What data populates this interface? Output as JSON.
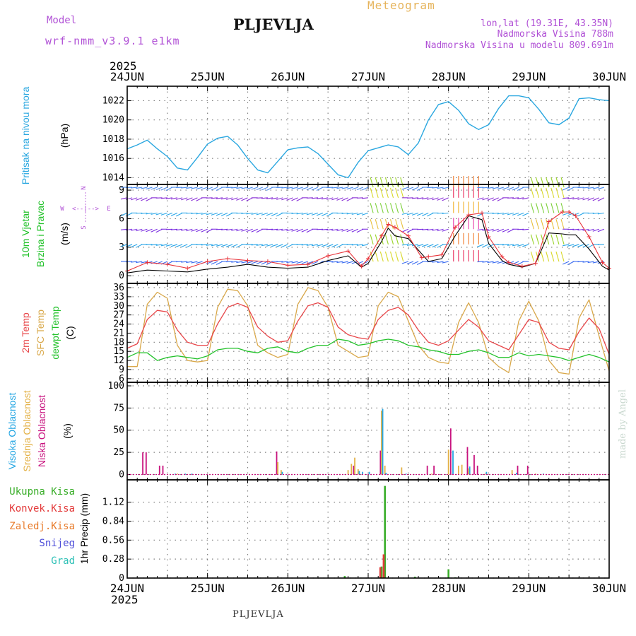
{
  "header": {
    "model_label": "Model",
    "model_name": "wrf-nmm_v3.9.1 e1km",
    "station": "PLJEVLJA",
    "product": "Meteogram",
    "lonlat": "lon,lat (19.31E, 43.35N)",
    "elevation": "Nadmorska Visina 788m",
    "model_elevation": "Nadmorska Visina u modelu 809.691m",
    "credit": "made by Angel",
    "footer_station": "PLJEVLJA"
  },
  "colors": {
    "pressure": "#2aa7e0",
    "wind_speed": "#000000",
    "wind_gust": "#e8333a",
    "temp_2m": "#e8474a",
    "temp_sfc": "#d9a84a",
    "dewpoint": "#22c22a",
    "cloud_high": "#23a6e3",
    "cloud_mid": "#e3b146",
    "cloud_low": "#c8127e",
    "precip_total": "#3aae2a",
    "precip_conv": "#e33a3a",
    "precip_snow_label": "#4b4bd8",
    "precip_grad_label": "#2cc0b6",
    "precip_zaledj_label": "#e87b2a",
    "frame": "#000000",
    "grid": "#808080"
  },
  "chart_data": [
    {
      "id": "pressure",
      "type": "line",
      "ylabel": "Pritisak na nivou mora",
      "unit": "(hPa)",
      "ylim": [
        1013.3,
        1023.5
      ],
      "yticks": [
        "1014",
        "1016",
        "1018",
        "1020",
        "1022"
      ],
      "xlim": [
        0,
        144
      ],
      "x_top_ticks": [
        "24JUN",
        "25JUN",
        "26JUN",
        "27JUN",
        "28JUN",
        "29JUN",
        "30JUN"
      ],
      "x_top_year": "2025",
      "grid": true,
      "series": [
        {
          "key": "pressure",
          "x": [
            0,
            3,
            6,
            9,
            12,
            15,
            18,
            21,
            24,
            27,
            30,
            33,
            36,
            39,
            42,
            45,
            48,
            51,
            54,
            57,
            60,
            63,
            66,
            69,
            72,
            75,
            78,
            81,
            84,
            87,
            90,
            93,
            96,
            99,
            102,
            105,
            108,
            111,
            114,
            117,
            120,
            123,
            126,
            129,
            132,
            135,
            138,
            141,
            144
          ],
          "y": [
            1017.0,
            1017.4,
            1017.9,
            1017.0,
            1016.2,
            1015.0,
            1014.8,
            1016.1,
            1017.5,
            1018.1,
            1018.3,
            1017.4,
            1016.0,
            1014.8,
            1014.5,
            1015.7,
            1016.9,
            1017.1,
            1017.2,
            1016.5,
            1015.4,
            1014.3,
            1014.0,
            1015.6,
            1016.8,
            1017.1,
            1017.4,
            1017.2,
            1016.4,
            1017.6,
            1020.0,
            1021.6,
            1021.9,
            1021.0,
            1019.6,
            1019.0,
            1019.5,
            1021.2,
            1022.5,
            1022.5,
            1022.3,
            1021.1,
            1019.7,
            1019.5,
            1020.2,
            1022.2,
            1022.3,
            1022.1,
            1022.0
          ]
        }
      ]
    },
    {
      "id": "wind",
      "type": "line",
      "ylabel_lines": [
        "10m Vjetar",
        "Brzina i Pravac"
      ],
      "unit": "(m/s)",
      "compass": {
        "n": "N",
        "s": "S",
        "e": "E",
        "w": "W",
        "arrows": "<--|-->"
      },
      "ylim": [
        -0.8,
        9.6
      ],
      "yticks": [
        "0",
        "3",
        "6",
        "9"
      ],
      "xlim": [
        0,
        144
      ],
      "grid": true,
      "series": [
        {
          "key": "wind_speed",
          "x": [
            0,
            6,
            12,
            18,
            24,
            30,
            36,
            42,
            48,
            54,
            60,
            66,
            70,
            72,
            76,
            78,
            80,
            84,
            88,
            90,
            94,
            98,
            102,
            106,
            108,
            112,
            114,
            118,
            122,
            126,
            130,
            132,
            134,
            138,
            142,
            144
          ],
          "y": [
            0.3,
            0.6,
            0.5,
            0.4,
            0.7,
            0.9,
            1.2,
            0.9,
            0.8,
            0.9,
            1.6,
            2.1,
            0.9,
            1.3,
            3.6,
            5.0,
            4.2,
            3.9,
            2.3,
            1.5,
            1.8,
            4.2,
            6.3,
            5.9,
            3.4,
            1.6,
            1.2,
            0.9,
            1.3,
            4.5,
            4.4,
            4.3,
            4.3,
            2.8,
            1.0,
            0.6
          ]
        },
        {
          "key": "wind_gust",
          "x": [
            0,
            6,
            12,
            18,
            24,
            30,
            36,
            42,
            48,
            54,
            60,
            66,
            70,
            72,
            76,
            78,
            80,
            84,
            88,
            90,
            94,
            98,
            102,
            106,
            108,
            112,
            114,
            118,
            122,
            126,
            130,
            132,
            134,
            138,
            142,
            144
          ],
          "y": [
            0.5,
            1.4,
            1.2,
            0.8,
            1.5,
            1.8,
            1.6,
            1.5,
            1.1,
            1.2,
            2.1,
            2.6,
            1.0,
            1.8,
            4.2,
            5.4,
            5.1,
            4.2,
            1.9,
            2.0,
            2.2,
            5.1,
            6.4,
            6.6,
            4.1,
            2.0,
            1.4,
            1.0,
            1.3,
            5.7,
            6.7,
            6.7,
            6.3,
            4.1,
            1.4,
            0.8
          ]
        }
      ]
    },
    {
      "id": "temperature",
      "type": "line",
      "ylabels": [
        "2m Temp",
        "SFC Temp",
        "dewpt Temp"
      ],
      "unit": "(C)",
      "ylim": [
        4.8,
        37.4
      ],
      "yticks": [
        "6",
        "9",
        "12",
        "15",
        "18",
        "21",
        "24",
        "27",
        "30",
        "33",
        "36"
      ],
      "xlim": [
        0,
        144
      ],
      "grid": true,
      "series": [
        {
          "key": "temp_2m",
          "x": [
            0,
            3,
            6,
            9,
            12,
            15,
            18,
            21,
            24,
            27,
            30,
            33,
            36,
            39,
            42,
            45,
            48,
            51,
            54,
            57,
            60,
            63,
            66,
            69,
            72,
            75,
            78,
            81,
            84,
            87,
            90,
            93,
            96,
            99,
            102,
            105,
            108,
            111,
            114,
            117,
            120,
            123,
            126,
            129,
            132,
            135,
            138,
            141,
            144
          ],
          "y": [
            16.0,
            17.5,
            25.5,
            28.5,
            28.0,
            22.0,
            18.0,
            17.0,
            17.0,
            24.0,
            29.5,
            30.8,
            29.5,
            23.0,
            20.0,
            18.0,
            18.5,
            25.0,
            30.0,
            31.0,
            29.5,
            23.0,
            20.5,
            19.5,
            19.0,
            25.5,
            28.5,
            29.5,
            27.0,
            22.0,
            18.0,
            17.0,
            18.5,
            22.0,
            25.5,
            23.0,
            18.5,
            17.0,
            15.5,
            20.5,
            25.5,
            24.5,
            18.0,
            16.0,
            15.5,
            21.5,
            26.0,
            22.5,
            14.0
          ]
        },
        {
          "key": "temp_sfc",
          "x": [
            0,
            3,
            6,
            9,
            12,
            15,
            18,
            21,
            24,
            27,
            30,
            33,
            36,
            39,
            42,
            45,
            48,
            51,
            54,
            57,
            60,
            63,
            66,
            69,
            72,
            75,
            78,
            81,
            84,
            87,
            90,
            93,
            96,
            99,
            102,
            105,
            108,
            111,
            114,
            117,
            120,
            123,
            126,
            129,
            132,
            135,
            138,
            141,
            144
          ],
          "y": [
            10.0,
            10.0,
            30.5,
            34.5,
            32.5,
            17.0,
            12.0,
            11.5,
            12.0,
            29.5,
            35.5,
            35.0,
            30.0,
            17.0,
            14.5,
            13.0,
            14.0,
            30.5,
            36.0,
            35.0,
            29.5,
            17.0,
            15.0,
            13.0,
            13.5,
            30.0,
            34.5,
            33.0,
            25.0,
            17.0,
            13.0,
            11.5,
            11.0,
            24.5,
            31.0,
            24.5,
            13.0,
            10.0,
            8.0,
            25.0,
            31.5,
            25.0,
            12.0,
            8.0,
            7.5,
            26.0,
            32.0,
            20.0,
            8.5
          ]
        },
        {
          "key": "dewpoint",
          "x": [
            0,
            3,
            6,
            9,
            12,
            15,
            18,
            21,
            24,
            27,
            30,
            33,
            36,
            39,
            42,
            45,
            48,
            51,
            54,
            57,
            60,
            63,
            66,
            69,
            72,
            75,
            78,
            81,
            84,
            87,
            90,
            93,
            96,
            99,
            102,
            105,
            108,
            111,
            114,
            117,
            120,
            123,
            126,
            129,
            132,
            135,
            138,
            141,
            144
          ],
          "y": [
            13.0,
            14.5,
            14.5,
            12.0,
            13.0,
            13.5,
            13.0,
            12.5,
            13.5,
            15.5,
            16.0,
            16.0,
            15.0,
            14.5,
            16.0,
            16.5,
            15.0,
            14.5,
            16.0,
            17.0,
            17.0,
            19.0,
            18.5,
            17.0,
            17.5,
            18.5,
            19.0,
            18.5,
            17.0,
            16.5,
            15.5,
            15.0,
            14.0,
            14.0,
            15.0,
            15.5,
            14.5,
            13.0,
            13.0,
            14.5,
            13.5,
            14.0,
            13.5,
            13.0,
            12.0,
            13.0,
            14.0,
            13.0,
            11.5
          ]
        }
      ]
    },
    {
      "id": "clouds",
      "type": "bar",
      "ylabels": [
        "Visoka Oblacnost",
        "Srednja Oblacnost",
        "Niska Oblacnost"
      ],
      "unit": "(%)",
      "ylim": [
        -6,
        104
      ],
      "yticks": [
        "0",
        "25",
        "50",
        "75",
        "100"
      ],
      "xlim": [
        0,
        144
      ],
      "grid": true,
      "series": [
        {
          "key": "cloud_low",
          "x": [
            5,
            6,
            10,
            11,
            45,
            68,
            76,
            90,
            92,
            97,
            102,
            104,
            105,
            117,
            120
          ],
          "y": [
            25,
            25,
            10,
            10,
            26,
            10,
            27,
            10,
            10,
            52,
            31,
            22,
            10,
            10,
            10
          ]
        },
        {
          "key": "cloud_mid",
          "x": [
            15,
            45,
            46,
            66,
            67,
            68,
            69,
            76,
            77,
            82,
            91,
            96,
            99,
            100,
            102,
            107,
            115,
            122
          ],
          "y": [
            1,
            14,
            5,
            5,
            12,
            19,
            6,
            72,
            10,
            8,
            1,
            28,
            10,
            11,
            7,
            1,
            5,
            1
          ]
        },
        {
          "key": "cloud_high",
          "x": [
            14,
            17,
            19,
            46,
            69,
            70,
            72,
            76,
            77,
            83,
            97,
            102,
            107,
            116,
            124
          ],
          "y": [
            1,
            1,
            1,
            3,
            4,
            3,
            3,
            74,
            2,
            1,
            27,
            9,
            3,
            2,
            1
          ]
        }
      ]
    },
    {
      "id": "precip",
      "type": "bar",
      "ylabel": "1hr Precip (mm)",
      "legend": [
        "Ukupna Kisa",
        "Konvek.Kisa",
        "Zaledj.Kisa",
        "Snijeg",
        "Grad"
      ],
      "ylim": [
        0,
        1.45
      ],
      "yticks": [
        "0",
        "0.28",
        "0.56",
        "0.84",
        "1.12"
      ],
      "xlim": [
        0,
        144
      ],
      "x_bottom_ticks": [
        "24JUN",
        "25JUN",
        "26JUN",
        "27JUN",
        "28JUN",
        "29JUN",
        "30JUN"
      ],
      "x_bottom_year": "2025",
      "grid": true,
      "series": [
        {
          "key": "precip_total",
          "x": [
            65,
            76,
            77,
            86,
            96,
            98
          ],
          "y": [
            0.03,
            0.17,
            1.36,
            0.02,
            0.13,
            0.01
          ]
        },
        {
          "key": "precip_conv",
          "x": [
            76,
            77
          ],
          "y": [
            0.16,
            0.35
          ]
        }
      ]
    }
  ]
}
